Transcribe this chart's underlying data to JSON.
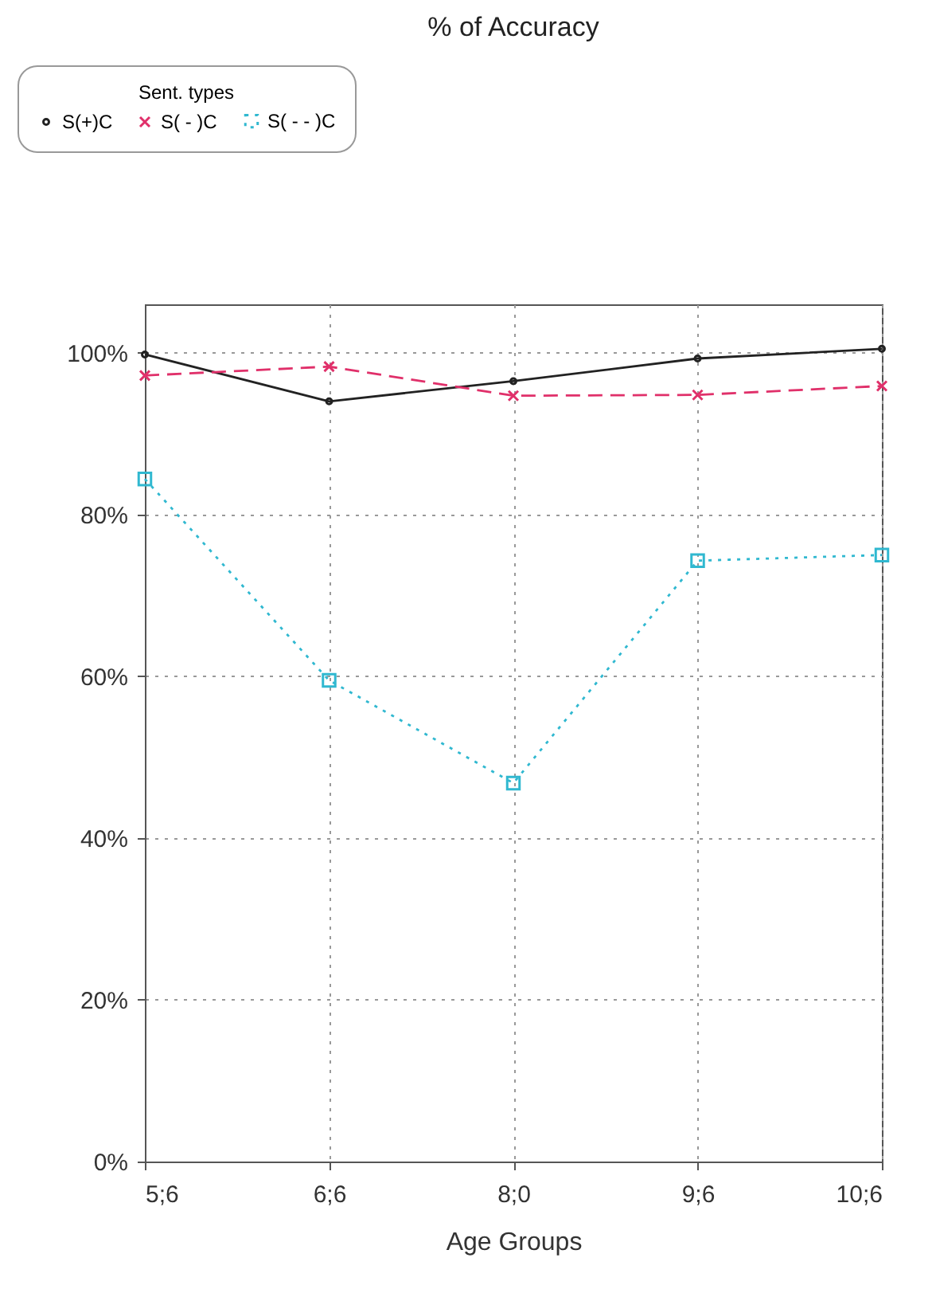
{
  "chart_data": {
    "type": "line",
    "title": "% of Accuracy",
    "xlabel": "Age Groups",
    "legend_title": "Sent. types",
    "legend": "top left",
    "grid": true,
    "categories": [
      "5;6",
      "6;6",
      "8;0",
      "9;6",
      "10;6"
    ],
    "ylim": [
      0,
      106
    ],
    "yticks": [
      {
        "value": 0,
        "label": "0%"
      },
      {
        "value": 20,
        "label": "20%"
      },
      {
        "value": 40,
        "label": "40%"
      },
      {
        "value": 60,
        "label": "60%"
      },
      {
        "value": 80,
        "label": "80%"
      },
      {
        "value": 100,
        "label": "100%"
      }
    ],
    "series": [
      {
        "name": "S(+)C",
        "color": "#222222",
        "marker": "circle",
        "line_style": "solid",
        "values": [
          99.8,
          94,
          96.5,
          99.3,
          100.5
        ]
      },
      {
        "name": "S( - )C",
        "color": "#e0306a",
        "marker": "cross",
        "line_style": "dashed",
        "values": [
          97.2,
          98.3,
          94.7,
          94.8,
          95.9
        ]
      },
      {
        "name": "S( - - )C",
        "color": "#30b8d0",
        "marker": "square",
        "line_style": "dotted",
        "values": [
          84.4,
          59.5,
          46.8,
          74.3,
          75
        ]
      }
    ]
  }
}
